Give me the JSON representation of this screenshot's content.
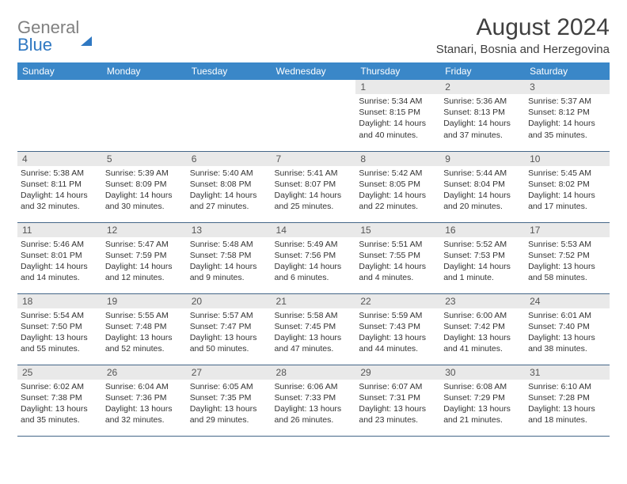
{
  "logo": {
    "gray": "General",
    "blue": "Blue"
  },
  "title": "August 2024",
  "subtitle": "Stanari, Bosnia and Herzegovina",
  "weekdays": [
    "Sunday",
    "Monday",
    "Tuesday",
    "Wednesday",
    "Thursday",
    "Friday",
    "Saturday"
  ],
  "cells": [
    {
      "n": "",
      "sr": "",
      "ss": "",
      "dl": ""
    },
    {
      "n": "",
      "sr": "",
      "ss": "",
      "dl": ""
    },
    {
      "n": "",
      "sr": "",
      "ss": "",
      "dl": ""
    },
    {
      "n": "",
      "sr": "",
      "ss": "",
      "dl": ""
    },
    {
      "n": "1",
      "sr": "Sunrise: 5:34 AM",
      "ss": "Sunset: 8:15 PM",
      "dl": "Daylight: 14 hours and 40 minutes."
    },
    {
      "n": "2",
      "sr": "Sunrise: 5:36 AM",
      "ss": "Sunset: 8:13 PM",
      "dl": "Daylight: 14 hours and 37 minutes."
    },
    {
      "n": "3",
      "sr": "Sunrise: 5:37 AM",
      "ss": "Sunset: 8:12 PM",
      "dl": "Daylight: 14 hours and 35 minutes."
    },
    {
      "n": "4",
      "sr": "Sunrise: 5:38 AM",
      "ss": "Sunset: 8:11 PM",
      "dl": "Daylight: 14 hours and 32 minutes."
    },
    {
      "n": "5",
      "sr": "Sunrise: 5:39 AM",
      "ss": "Sunset: 8:09 PM",
      "dl": "Daylight: 14 hours and 30 minutes."
    },
    {
      "n": "6",
      "sr": "Sunrise: 5:40 AM",
      "ss": "Sunset: 8:08 PM",
      "dl": "Daylight: 14 hours and 27 minutes."
    },
    {
      "n": "7",
      "sr": "Sunrise: 5:41 AM",
      "ss": "Sunset: 8:07 PM",
      "dl": "Daylight: 14 hours and 25 minutes."
    },
    {
      "n": "8",
      "sr": "Sunrise: 5:42 AM",
      "ss": "Sunset: 8:05 PM",
      "dl": "Daylight: 14 hours and 22 minutes."
    },
    {
      "n": "9",
      "sr": "Sunrise: 5:44 AM",
      "ss": "Sunset: 8:04 PM",
      "dl": "Daylight: 14 hours and 20 minutes."
    },
    {
      "n": "10",
      "sr": "Sunrise: 5:45 AM",
      "ss": "Sunset: 8:02 PM",
      "dl": "Daylight: 14 hours and 17 minutes."
    },
    {
      "n": "11",
      "sr": "Sunrise: 5:46 AM",
      "ss": "Sunset: 8:01 PM",
      "dl": "Daylight: 14 hours and 14 minutes."
    },
    {
      "n": "12",
      "sr": "Sunrise: 5:47 AM",
      "ss": "Sunset: 7:59 PM",
      "dl": "Daylight: 14 hours and 12 minutes."
    },
    {
      "n": "13",
      "sr": "Sunrise: 5:48 AM",
      "ss": "Sunset: 7:58 PM",
      "dl": "Daylight: 14 hours and 9 minutes."
    },
    {
      "n": "14",
      "sr": "Sunrise: 5:49 AM",
      "ss": "Sunset: 7:56 PM",
      "dl": "Daylight: 14 hours and 6 minutes."
    },
    {
      "n": "15",
      "sr": "Sunrise: 5:51 AM",
      "ss": "Sunset: 7:55 PM",
      "dl": "Daylight: 14 hours and 4 minutes."
    },
    {
      "n": "16",
      "sr": "Sunrise: 5:52 AM",
      "ss": "Sunset: 7:53 PM",
      "dl": "Daylight: 14 hours and 1 minute."
    },
    {
      "n": "17",
      "sr": "Sunrise: 5:53 AM",
      "ss": "Sunset: 7:52 PM",
      "dl": "Daylight: 13 hours and 58 minutes."
    },
    {
      "n": "18",
      "sr": "Sunrise: 5:54 AM",
      "ss": "Sunset: 7:50 PM",
      "dl": "Daylight: 13 hours and 55 minutes."
    },
    {
      "n": "19",
      "sr": "Sunrise: 5:55 AM",
      "ss": "Sunset: 7:48 PM",
      "dl": "Daylight: 13 hours and 52 minutes."
    },
    {
      "n": "20",
      "sr": "Sunrise: 5:57 AM",
      "ss": "Sunset: 7:47 PM",
      "dl": "Daylight: 13 hours and 50 minutes."
    },
    {
      "n": "21",
      "sr": "Sunrise: 5:58 AM",
      "ss": "Sunset: 7:45 PM",
      "dl": "Daylight: 13 hours and 47 minutes."
    },
    {
      "n": "22",
      "sr": "Sunrise: 5:59 AM",
      "ss": "Sunset: 7:43 PM",
      "dl": "Daylight: 13 hours and 44 minutes."
    },
    {
      "n": "23",
      "sr": "Sunrise: 6:00 AM",
      "ss": "Sunset: 7:42 PM",
      "dl": "Daylight: 13 hours and 41 minutes."
    },
    {
      "n": "24",
      "sr": "Sunrise: 6:01 AM",
      "ss": "Sunset: 7:40 PM",
      "dl": "Daylight: 13 hours and 38 minutes."
    },
    {
      "n": "25",
      "sr": "Sunrise: 6:02 AM",
      "ss": "Sunset: 7:38 PM",
      "dl": "Daylight: 13 hours and 35 minutes."
    },
    {
      "n": "26",
      "sr": "Sunrise: 6:04 AM",
      "ss": "Sunset: 7:36 PM",
      "dl": "Daylight: 13 hours and 32 minutes."
    },
    {
      "n": "27",
      "sr": "Sunrise: 6:05 AM",
      "ss": "Sunset: 7:35 PM",
      "dl": "Daylight: 13 hours and 29 minutes."
    },
    {
      "n": "28",
      "sr": "Sunrise: 6:06 AM",
      "ss": "Sunset: 7:33 PM",
      "dl": "Daylight: 13 hours and 26 minutes."
    },
    {
      "n": "29",
      "sr": "Sunrise: 6:07 AM",
      "ss": "Sunset: 7:31 PM",
      "dl": "Daylight: 13 hours and 23 minutes."
    },
    {
      "n": "30",
      "sr": "Sunrise: 6:08 AM",
      "ss": "Sunset: 7:29 PM",
      "dl": "Daylight: 13 hours and 21 minutes."
    },
    {
      "n": "31",
      "sr": "Sunrise: 6:10 AM",
      "ss": "Sunset: 7:28 PM",
      "dl": "Daylight: 13 hours and 18 minutes."
    }
  ]
}
